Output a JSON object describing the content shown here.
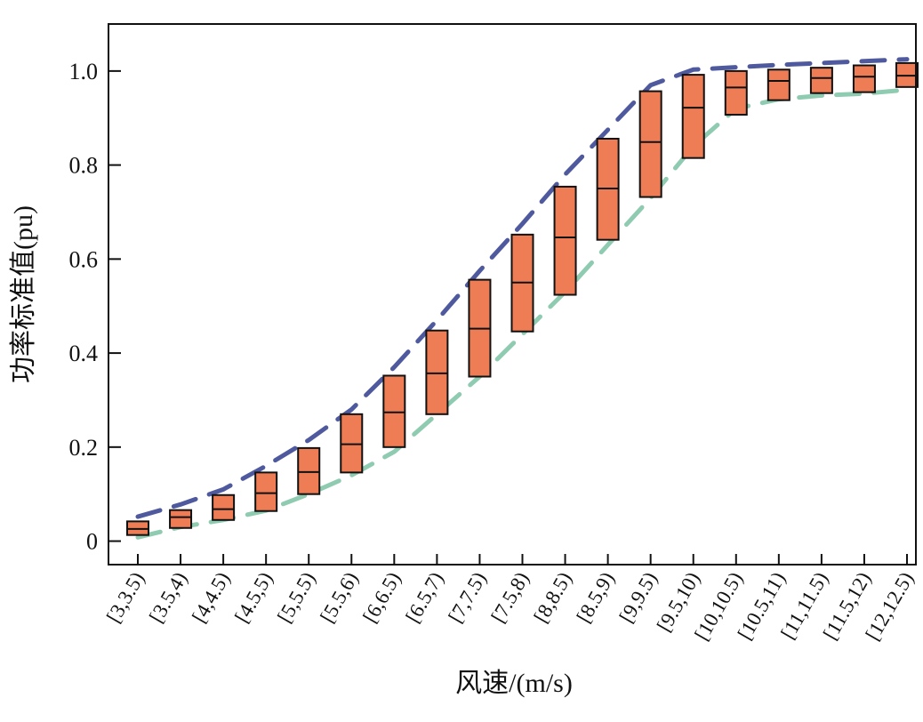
{
  "chart_data": {
    "type": "box",
    "title": "",
    "xlabel": "风速/(m/s)",
    "ylabel": "功率标准值(pu)",
    "ylim": [
      -0.05,
      1.1
    ],
    "yticks": [
      0,
      0.2,
      0.4,
      0.6,
      0.8,
      1.0
    ],
    "ytick_labels": [
      "0",
      "0.2",
      "0.4",
      "0.6",
      "0.8",
      "1.0"
    ],
    "grid": false,
    "categories": [
      "[3,3.5)",
      "[3.5,4)",
      "[4,4.5)",
      "[4.5,5)",
      "[5,5.5)",
      "[5.5,6)",
      "[6,6.5)",
      "[6.5,7)",
      "[7,7.5)",
      "[7.5,8)",
      "[8,8.5)",
      "[8.5,9)",
      "[9,9.5)",
      "[9.5,10)",
      "[10,10.5)",
      "[10.5,11)",
      "[11,11.5)",
      "[11.5,12)",
      "[12,12.5)"
    ],
    "boxes": {
      "upper": [
        0.042,
        0.066,
        0.098,
        0.146,
        0.198,
        0.27,
        0.352,
        0.448,
        0.556,
        0.652,
        0.754,
        0.856,
        0.957,
        0.992,
        1.0,
        1.003,
        1.007,
        1.012,
        1.017
      ],
      "median": [
        0.026,
        0.051,
        0.068,
        0.102,
        0.147,
        0.206,
        0.274,
        0.357,
        0.452,
        0.55,
        0.646,
        0.75,
        0.849,
        0.922,
        0.965,
        0.979,
        0.985,
        0.988,
        0.99
      ],
      "lower": [
        0.013,
        0.028,
        0.045,
        0.064,
        0.1,
        0.146,
        0.2,
        0.27,
        0.35,
        0.446,
        0.524,
        0.641,
        0.732,
        0.815,
        0.907,
        0.938,
        0.953,
        0.955,
        0.966
      ]
    },
    "upper_envelope": [
      0.052,
      0.078,
      0.11,
      0.16,
      0.215,
      0.28,
      0.37,
      0.47,
      0.575,
      0.675,
      0.78,
      0.875,
      0.97,
      1.003,
      1.008,
      1.013,
      1.017,
      1.021,
      1.025
    ],
    "lower_envelope": [
      0.008,
      0.03,
      0.045,
      0.065,
      0.1,
      0.14,
      0.19,
      0.27,
      0.35,
      0.44,
      0.53,
      0.63,
      0.73,
      0.84,
      0.92,
      0.94,
      0.948,
      0.952,
      0.96
    ],
    "colors": {
      "box_fill": "#ee7d55",
      "box_edge": "#111111",
      "upper_envelope": "#4f5a9e",
      "lower_envelope": "#8ecbb0"
    }
  }
}
